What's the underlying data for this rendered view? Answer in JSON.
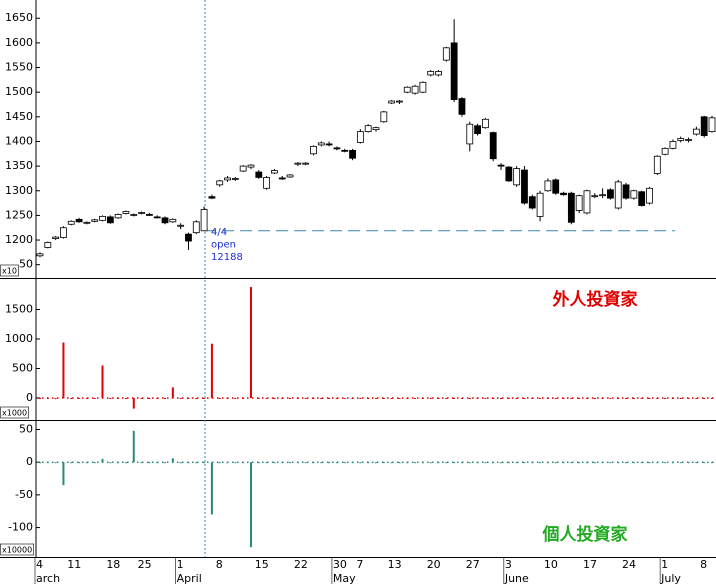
{
  "chart_data": [
    {
      "type": "candlestick",
      "categories": [
        "4",
        null,
        null,
        null,
        "11",
        null,
        null,
        null,
        null,
        "18",
        null,
        null,
        null,
        "25",
        null,
        null,
        null,
        null,
        "1",
        null,
        null,
        null,
        null,
        "8",
        null,
        null,
        null,
        null,
        "15",
        null,
        null,
        null,
        null,
        "22",
        null,
        null,
        null,
        null,
        "30",
        null,
        null,
        "7",
        null,
        null,
        null,
        "13",
        null,
        null,
        null,
        null,
        "20",
        null,
        null,
        null,
        null,
        "27",
        null,
        null,
        null,
        null,
        "3",
        null,
        null,
        null,
        null,
        "10",
        null,
        null,
        null,
        null,
        "17",
        null,
        null,
        null,
        null,
        "24",
        null,
        null,
        null,
        null,
        "1",
        null,
        null,
        null,
        null,
        "8",
        null
      ],
      "month_labels": [
        "arch",
        null,
        null,
        null,
        null,
        null,
        null,
        null,
        null,
        null,
        null,
        null,
        null,
        null,
        null,
        null,
        null,
        null,
        "April",
        null,
        null,
        null,
        null,
        null,
        null,
        null,
        null,
        null,
        null,
        null,
        null,
        null,
        null,
        null,
        null,
        null,
        null,
        null,
        "May",
        null,
        null,
        null,
        null,
        null,
        null,
        null,
        null,
        null,
        null,
        null,
        null,
        null,
        null,
        null,
        null,
        null,
        null,
        null,
        null,
        null,
        "June",
        null,
        null,
        null,
        null,
        null,
        null,
        null,
        null,
        null,
        null,
        null,
        null,
        null,
        null,
        null,
        null,
        null,
        null,
        null,
        "July",
        null,
        null,
        null,
        null,
        null,
        null
      ],
      "open": [
        1168,
        1185,
        1203,
        1205,
        1232,
        1242,
        1234,
        1238,
        1240,
        1247,
        1245,
        1254,
        1250,
        1255,
        1252,
        1247,
        1245,
        1237,
        1228,
        1212,
        1215,
        1218.8,
        1288,
        1312,
        1322,
        1324,
        1340,
        1348,
        1338,
        1305,
        1336,
        1326,
        1328,
        1354,
        1354,
        1375,
        1393,
        1395,
        1387,
        1382,
        1382,
        1398,
        1420,
        1424,
        1440,
        1478,
        1480,
        1500,
        1498,
        1500,
        1535,
        1535,
        1565,
        1600,
        1487,
        1395,
        1432,
        1428,
        1418,
        1352,
        1348,
        1312,
        1342,
        1288,
        1248,
        1300,
        1322,
        1295,
        1295,
        1260,
        1255,
        1288,
        1290,
        1302,
        1265,
        1312,
        1285,
        1298,
        1275,
        1335,
        1374,
        1386,
        1402,
        1402,
        1415,
        1450,
        1420
      ],
      "high": [
        1175,
        1197,
        1208,
        1228,
        1240,
        1245,
        1238,
        1243,
        1250,
        1250,
        1254,
        1260,
        1254,
        1258,
        1255,
        1250,
        1248,
        1244,
        1234,
        1215,
        1240,
        1268,
        1292,
        1322,
        1330,
        1328,
        1352,
        1354,
        1342,
        1330,
        1344,
        1330,
        1334,
        1358,
        1358,
        1392,
        1400,
        1400,
        1390,
        1385,
        1385,
        1425,
        1435,
        1430,
        1462,
        1484,
        1484,
        1512,
        1515,
        1522,
        1545,
        1545,
        1592,
        1648,
        1490,
        1440,
        1436,
        1448,
        1420,
        1356,
        1350,
        1350,
        1350,
        1292,
        1300,
        1325,
        1325,
        1298,
        1298,
        1292,
        1302,
        1295,
        1305,
        1305,
        1322,
        1316,
        1302,
        1300,
        1308,
        1372,
        1388,
        1404,
        1410,
        1408,
        1430,
        1452,
        1452
      ],
      "low": [
        1165,
        1183,
        1200,
        1203,
        1230,
        1235,
        1232,
        1236,
        1238,
        1233,
        1243,
        1252,
        1248,
        1252,
        1249,
        1244,
        1232,
        1235,
        1222,
        1180,
        1212,
        1218,
        1283,
        1308,
        1318,
        1320,
        1338,
        1344,
        1324,
        1302,
        1334,
        1322,
        1326,
        1350,
        1352,
        1372,
        1390,
        1390,
        1382,
        1378,
        1362,
        1396,
        1418,
        1420,
        1438,
        1476,
        1476,
        1498,
        1495,
        1498,
        1532,
        1532,
        1562,
        1480,
        1450,
        1380,
        1412,
        1426,
        1360,
        1342,
        1318,
        1308,
        1272,
        1262,
        1238,
        1298,
        1292,
        1290,
        1232,
        1255,
        1252,
        1285,
        1285,
        1282,
        1262,
        1282,
        1282,
        1268,
        1272,
        1332,
        1372,
        1384,
        1398,
        1398,
        1412,
        1408,
        1418
      ],
      "close": [
        1172,
        1195,
        1206,
        1225,
        1238,
        1237,
        1236,
        1241,
        1248,
        1235,
        1252,
        1258,
        1252,
        1256,
        1250,
        1245,
        1235,
        1242,
        1230,
        1198,
        1237,
        1262,
        1285,
        1320,
        1326,
        1325,
        1350,
        1352,
        1327,
        1327,
        1341,
        1324,
        1332,
        1356,
        1356,
        1390,
        1397,
        1393,
        1386,
        1380,
        1366,
        1420,
        1432,
        1428,
        1460,
        1482,
        1482,
        1510,
        1512,
        1520,
        1542,
        1542,
        1590,
        1485,
        1455,
        1435,
        1416,
        1445,
        1365,
        1350,
        1320,
        1345,
        1275,
        1265,
        1295,
        1320,
        1295,
        1292,
        1236,
        1290,
        1300,
        1290,
        1292,
        1285,
        1318,
        1285,
        1300,
        1270,
        1305,
        1370,
        1386,
        1400,
        1406,
        1404,
        1425,
        1412,
        1448
      ],
      "ylim": [
        1123,
        1687
      ],
      "yticks": [
        {
          "value": 1150,
          "label": "50"
        },
        1200,
        1250,
        1300,
        1350,
        1400,
        1450,
        1500,
        1550,
        1600,
        1650
      ],
      "unit_label": "x10",
      "annotation": [
        "4/4",
        "open",
        "12188"
      ],
      "reference_value": 1218.8,
      "reference_color": "#3a86a8"
    },
    {
      "type": "bar",
      "title": "外人投資家",
      "color": "#e00000",
      "title_color": "#e00000",
      "values": [
        0,
        0,
        0,
        940,
        0,
        0,
        0,
        0,
        550,
        0,
        0,
        0,
        -180,
        0,
        0,
        0,
        0,
        180,
        0,
        0,
        0,
        0,
        920,
        0,
        0,
        0,
        0,
        1880,
        0,
        0,
        0,
        0,
        0,
        0,
        0,
        0,
        0,
        0,
        0,
        0,
        0,
        0,
        0,
        0,
        0,
        0,
        0,
        0,
        0,
        0,
        0,
        0,
        0,
        0,
        0,
        0,
        0,
        0,
        0,
        0,
        0,
        0,
        0,
        0,
        0,
        0,
        0,
        0,
        0,
        0,
        0,
        0,
        0,
        0,
        0,
        0,
        0,
        0,
        0,
        0,
        0,
        0,
        0,
        0,
        0,
        0,
        0
      ],
      "ylim": [
        -373,
        2017
      ],
      "yticks": [
        0,
        500,
        1000,
        1500
      ],
      "unit_label": "x1000"
    },
    {
      "type": "bar",
      "title": "個人投資家",
      "color": "#2a8a7c",
      "title_color": "#22aa22",
      "values": [
        0,
        0,
        0,
        -35,
        0,
        0,
        0,
        0,
        5,
        0,
        0,
        0,
        48,
        0,
        0,
        0,
        0,
        6,
        0,
        0,
        0,
        0,
        -80,
        0,
        0,
        0,
        0,
        -130,
        0,
        0,
        0,
        0,
        0,
        0,
        0,
        0,
        0,
        0,
        0,
        0,
        0,
        0,
        0,
        0,
        0,
        0,
        0,
        0,
        0,
        0,
        0,
        0,
        0,
        0,
        0,
        0,
        0,
        0,
        0,
        0,
        0,
        0,
        0,
        0,
        0,
        0,
        0,
        0,
        0,
        0,
        0,
        0,
        0,
        0,
        0,
        0,
        0,
        0,
        0,
        0,
        0,
        0,
        0,
        0,
        0,
        0,
        0
      ],
      "ylim": [
        -145,
        63
      ],
      "yticks": [
        -100,
        -50,
        0,
        50
      ],
      "unit_label": "x10000"
    }
  ]
}
